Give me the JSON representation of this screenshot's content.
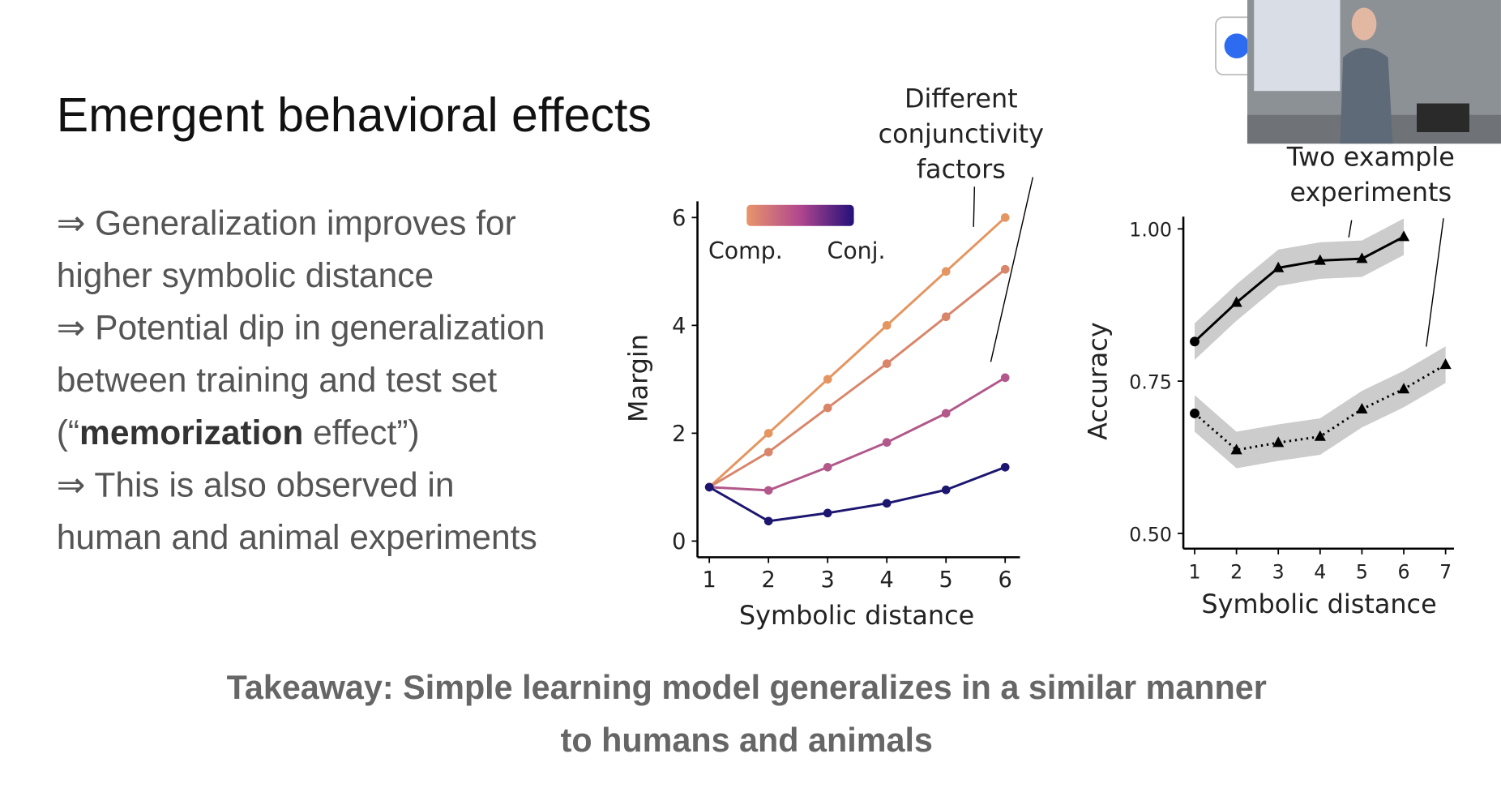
{
  "slide": {
    "title": "Emergent behavioral effects",
    "lines": [
      "⇒ Generalization improves for",
      "higher symbolic distance",
      "⇒ Potential dip in generalization",
      "between training and test set",
      {
        "before": "(“",
        "bold": "memorization",
        "after": " effect”)"
      },
      "⇒ This is also observed in",
      "human and animal experiments"
    ],
    "takeaway": [
      "Takeaway: Simple learning model generalizes in a similar manner",
      "to humans and animals"
    ]
  },
  "chart_data": [
    {
      "type": "line",
      "x_label": "Symbolic distance",
      "y_label": "Margin",
      "annotation": [
        "Different",
        "conjunctivity",
        "factors"
      ],
      "legend": {
        "type": "colorbar",
        "labels": [
          "Comp.",
          "Conj."
        ],
        "colors": [
          "#e8956a",
          "#b0468e",
          "#23107a"
        ]
      },
      "x": [
        1,
        2,
        3,
        4,
        5,
        6
      ],
      "xlim": [
        0.8,
        6.25
      ],
      "xticks": [
        1,
        2,
        3,
        4,
        5,
        6
      ],
      "ylim": [
        -0.3,
        6.3
      ],
      "yticks": [
        0,
        2,
        4,
        6
      ],
      "series": [
        {
          "color": "#e5955f",
          "values": [
            1,
            2,
            3,
            4,
            5,
            6
          ]
        },
        {
          "color": "#d9856a",
          "values": [
            1,
            1.65,
            2.47,
            3.29,
            4.16,
            5.04
          ]
        },
        {
          "color": "#b2588a",
          "values": [
            1,
            0.94,
            1.37,
            1.83,
            2.37,
            3.03
          ]
        },
        {
          "color": "#1c1670",
          "values": [
            1,
            0.37,
            0.52,
            0.7,
            0.95,
            1.37
          ]
        }
      ]
    },
    {
      "type": "line",
      "x_label": "Symbolic distance",
      "y_label": "Accuracy",
      "annotation": [
        "Two example",
        "experiments"
      ],
      "xlim": [
        0.73,
        7.2
      ],
      "xticks": [
        1,
        2,
        3,
        4,
        5,
        6,
        7
      ],
      "ylim": [
        0.475,
        1.02
      ],
      "yticks": [
        {
          "value": 0.5,
          "label": "0.50"
        },
        {
          "value": 0.75,
          "label": "0.75"
        },
        {
          "value": 1,
          "label": "1.00"
        }
      ],
      "band_color": "#cccccc",
      "series": [
        {
          "color": "#000000",
          "dash": "solid",
          "x": [
            1,
            2,
            3,
            4,
            5,
            6
          ],
          "values": [
            0.815,
            0.879,
            0.936,
            0.948,
            0.951,
            0.987
          ],
          "errors": [
            0.03,
            0.03,
            0.03,
            0.03,
            0.03,
            0.03
          ],
          "markers": [
            "circle",
            "triangle",
            "triangle",
            "triangle",
            "triangle",
            "triangle"
          ]
        },
        {
          "color": "#000000",
          "dash": "dotted",
          "x": [
            1,
            2,
            3,
            4,
            5,
            6,
            7
          ],
          "values": [
            0.697,
            0.637,
            0.649,
            0.659,
            0.704,
            0.737,
            0.777
          ],
          "errors": [
            0.03,
            0.03,
            0.03,
            0.03,
            0.03,
            0.03,
            0.03
          ],
          "markers": [
            "circle",
            "triangle",
            "triangle",
            "triangle",
            "triangle",
            "triangle",
            "triangle"
          ]
        }
      ]
    }
  ]
}
